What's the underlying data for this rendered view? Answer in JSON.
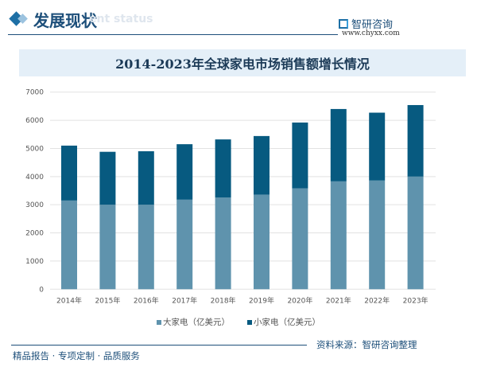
{
  "header": {
    "title": "发展现状",
    "subtitle_en": "ent status",
    "logo_name": "智研咨询",
    "logo_url": "www.chyxx.com"
  },
  "footer": {
    "tagline": "精品报告 · 专项定制 · 品质服务",
    "source": "资料来源：智研咨询整理"
  },
  "colors": {
    "large": "#5f93ad",
    "small": "#075a80",
    "accent": "#1d4f7a"
  },
  "chart_data": {
    "type": "bar",
    "stacked": true,
    "title": "2014-2023年全球家电市场销售额增长情况",
    "categories": [
      "2014年",
      "2015年",
      "2016年",
      "2017年",
      "2018年",
      "2019年",
      "2020年",
      "2021年",
      "2022年",
      "2023年"
    ],
    "series": [
      {
        "name": "大家电（亿美元）",
        "values": [
          3150,
          3000,
          3000,
          3180,
          3260,
          3360,
          3580,
          3830,
          3860,
          4000
        ]
      },
      {
        "name": "小家电（亿美元）",
        "values": [
          1950,
          1880,
          1900,
          1970,
          2060,
          2080,
          2340,
          2570,
          2410,
          2540
        ]
      }
    ],
    "ylim": [
      0,
      7000
    ],
    "yticks": [
      0,
      1000,
      2000,
      3000,
      4000,
      5000,
      6000,
      7000
    ],
    "grid": true,
    "legend": "bottom"
  }
}
